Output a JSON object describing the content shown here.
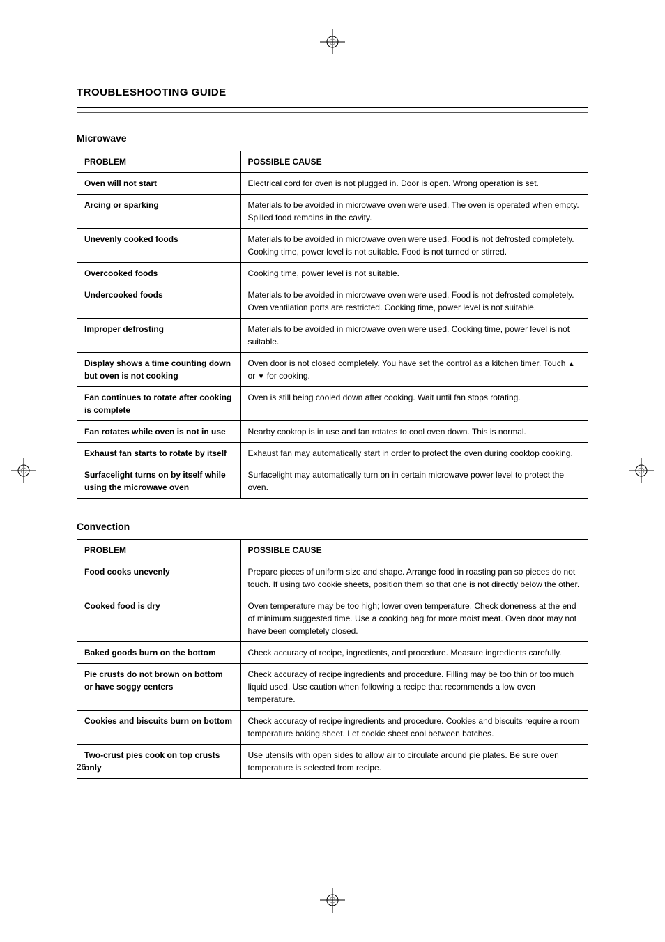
{
  "header": {
    "title": "TROUBLESHOOTING GUIDE"
  },
  "section1": {
    "label": "Microwave",
    "columns": {
      "problem": "PROBLEM",
      "cause": "POSSIBLE CAUSE"
    },
    "rows": [
      {
        "problem": "Oven will not start",
        "cause": "Electrical cord for oven is not plugged in. Door is open. Wrong operation is set."
      },
      {
        "problem": "Arcing or sparking",
        "cause": "Materials to be avoided in microwave oven were used. The oven is operated when empty. Spilled food remains in the cavity."
      },
      {
        "problem": "Unevenly cooked foods",
        "cause": "Materials to be avoided in microwave oven were used. Food is not defrosted completely. Cooking time, power level is not suitable. Food is not turned or stirred."
      },
      {
        "problem": "Overcooked foods",
        "cause": "Cooking time, power level is not suitable."
      },
      {
        "problem": "Undercooked foods",
        "cause": "Materials to be avoided in microwave oven were used. Food is not defrosted completely. Oven ventilation ports are restricted. Cooking time, power level is not suitable."
      },
      {
        "problem": "Improper defrosting",
        "cause": "Materials to be avoided in microwave oven were used. Cooking time, power level is not suitable."
      },
      {
        "problem": "Display shows a time counting down but oven is not cooking",
        "cause": "Oven door is not closed completely. You have set the control as a kitchen timer. Touch [UP_TRIANGLE] or [DOWN_TRIANGLE] for cooking."
      },
      {
        "problem": "Fan continues to rotate after cooking is complete",
        "cause": "Oven is still being cooled down after cooking. Wait until fan stops rotating."
      },
      {
        "problem": "Fan rotates while oven is not in use",
        "cause": "Nearby cooktop is in use and fan rotates to cool oven down. This is normal."
      },
      {
        "problem": "Exhaust fan starts to rotate by itself",
        "cause": "Exhaust fan may automatically start in order to protect the oven during cooktop cooking."
      },
      {
        "problem": "Surfacelight turns on by itself while using the microwave oven",
        "cause": "Surfacelight may automatically turn on in certain microwave power level to protect the oven."
      }
    ]
  },
  "section2": {
    "label": "Convection",
    "columns": {
      "problem": "PROBLEM",
      "cause": "POSSIBLE CAUSE"
    },
    "rows": [
      {
        "problem": "Food cooks unevenly",
        "cause": "Prepare pieces of uniform size and shape. Arrange food in roasting pan so pieces do not touch. If using two cookie sheets, position them so that one is not directly below the other."
      },
      {
        "problem": "Cooked food is dry",
        "cause": "Oven temperature may be too high; lower oven temperature. Check doneness at the end of minimum suggested time. Use a cooking bag for more moist meat. Oven door may not have been completely closed."
      },
      {
        "problem": "Baked goods burn on the bottom",
        "cause": "Check accuracy of recipe, ingredients, and procedure. Measure ingredients carefully."
      },
      {
        "problem": "Pie crusts do not brown on bottom or have soggy centers",
        "cause": "Check accuracy of recipe ingredients and procedure. Filling may be too thin or too much liquid used. Use caution when following a recipe that recommends a low oven temperature."
      },
      {
        "problem": "Cookies and biscuits burn on bottom",
        "cause": "Check accuracy of recipe ingredients and procedure. Cookies and biscuits require a room temperature baking sheet. Let cookie sheet cool between batches."
      },
      {
        "problem": "Two-crust pies cook on top crusts only",
        "cause": "Use utensils with open sides to allow air to circulate around pie plates. Be sure oven temperature is selected from recipe."
      }
    ]
  },
  "pageNumber": "26",
  "styling": {
    "page_bg": "#ffffff",
    "text_color": "#000000",
    "border_color": "#000000",
    "header_thin_line_color": "#555555",
    "font_family": "Arial, Helvetica, sans-serif",
    "title_fontsize": 15,
    "section_label_fontsize": 14,
    "table_fontsize": 12,
    "label_cell_width_pct": 32
  }
}
